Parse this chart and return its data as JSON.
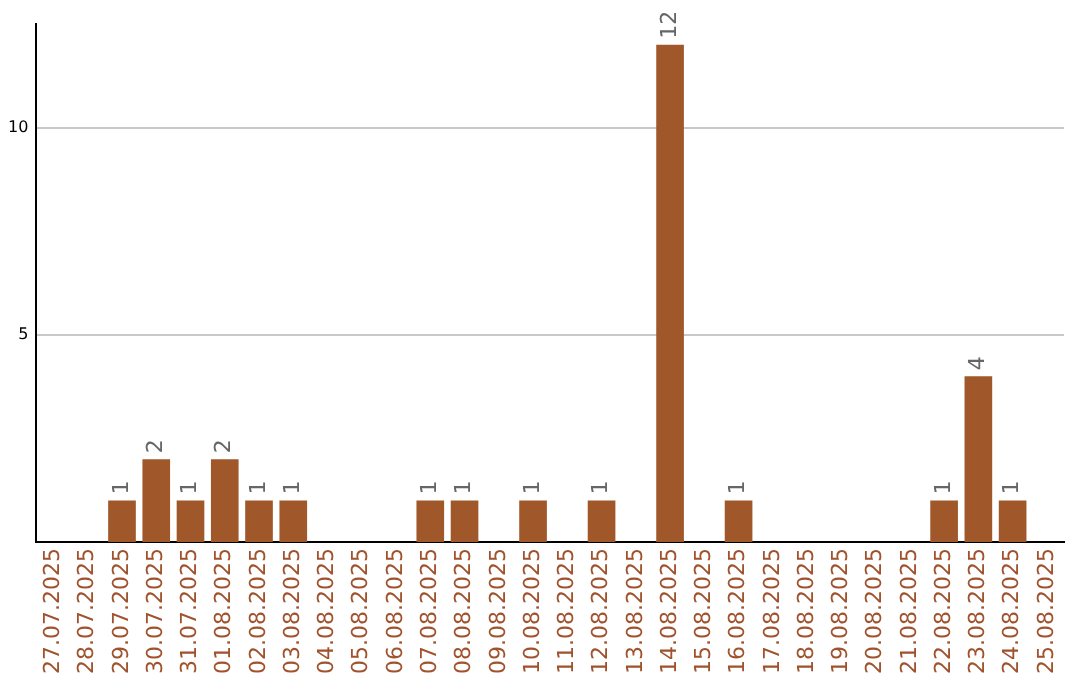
{
  "chart_data": {
    "type": "bar",
    "categories": [
      "27.07.2025",
      "28.07.2025",
      "29.07.2025",
      "30.07.2025",
      "31.07.2025",
      "01.08.2025",
      "02.08.2025",
      "03.08.2025",
      "04.08.2025",
      "05.08.2025",
      "06.08.2025",
      "07.08.2025",
      "08.08.2025",
      "09.08.2025",
      "10.08.2025",
      "11.08.2025",
      "12.08.2025",
      "13.08.2025",
      "14.08.2025",
      "15.08.2025",
      "16.08.2025",
      "17.08.2025",
      "18.08.2025",
      "19.08.2025",
      "20.08.2025",
      "21.08.2025",
      "22.08.2025",
      "23.08.2025",
      "24.08.2025",
      "25.08.2025"
    ],
    "values": [
      0,
      0,
      1,
      2,
      1,
      2,
      1,
      1,
      0,
      0,
      0,
      1,
      1,
      0,
      1,
      0,
      1,
      0,
      12,
      0,
      1,
      0,
      0,
      0,
      0,
      0,
      1,
      4,
      1,
      0
    ],
    "value_labels": [
      null,
      null,
      "1",
      "2",
      "1",
      "2",
      "1",
      "1",
      null,
      null,
      null,
      "1",
      "1",
      null,
      "1",
      null,
      "1",
      null,
      "12",
      null,
      "1",
      null,
      null,
      null,
      null,
      null,
      "1",
      "4",
      "1",
      null
    ],
    "color": "#a0582a",
    "ylim": [
      0,
      12.5
    ],
    "yticks": [
      5,
      10
    ],
    "grid": "y",
    "legend": false
  }
}
